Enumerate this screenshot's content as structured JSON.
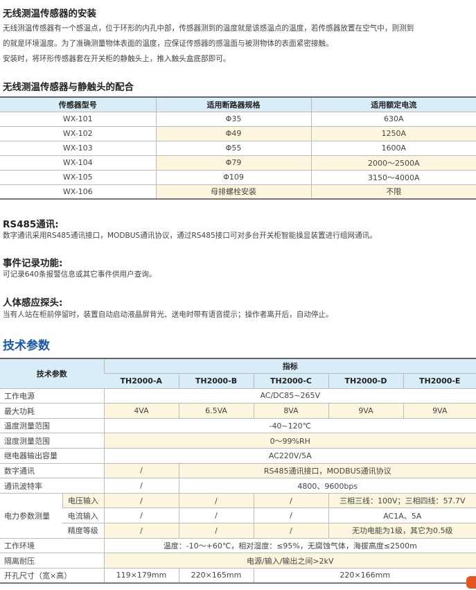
{
  "s1": {
    "title": "无线测温传感器的安装",
    "lines": [
      "无线测温传感器有一个感温点，位于环形的内孔中部，传感器测到的温度就是该感温点的温度，若传感器放置在空气中，则测到",
      "的就是环境温度。为了准确测量物体表面的温度，应保证传感器的感温面与被测物体的表面紧密接触。",
      "安装时，将环形传感器套在开关柜的静触头上，推入触头盒底部即可。"
    ]
  },
  "s2": {
    "title": "无线测温传感器与静触头的配合",
    "headers": [
      "传感器型号",
      "适用断路器规格",
      "适用额定电流"
    ],
    "rows": [
      [
        "WX-101",
        "Φ35",
        "630A"
      ],
      [
        "WX-102",
        "Φ49",
        "1250A"
      ],
      [
        "WX-103",
        "Φ55",
        "1600A"
      ],
      [
        "WX-104",
        "Φ79",
        "2000～2500A"
      ],
      [
        "WX-105",
        "Φ109",
        "3150～4000A"
      ],
      [
        "WX-106",
        "母排螺栓安装",
        "不限"
      ]
    ]
  },
  "rs485": {
    "title": "RS485通讯:",
    "text": "数字通讯采用RS485通讯接口，MODBUS通讯协议，通过RS485接口可对多台开关柜智能操显装置进行组网通讯。"
  },
  "event": {
    "title": "事件记录功能:",
    "text": "可记录640条报警信息或其它事件供用户查询。"
  },
  "sensor": {
    "title": "人体感应探头:",
    "text": "当有人站在柜前停留时，装置自动启动液晶屏背光、送电时带有语音提示；操作者离开后，自动停止。"
  },
  "spec": {
    "title": "技术参数",
    "h_param": "技术参数",
    "h_index": "指标",
    "models": [
      "TH2000-A",
      "TH2000-B",
      "TH2000-C",
      "TH2000-D",
      "TH2000-E"
    ],
    "power": [
      "工作电源",
      "AC/DC85~265V"
    ],
    "consume": [
      "最大功耗",
      "4VA",
      "6.5VA",
      "8VA",
      "9VA",
      "9VA"
    ],
    "temp": [
      "温度测量范围",
      "-40~120℃"
    ],
    "humid": [
      "湿度测量范围",
      "0～99%RH"
    ],
    "relay": [
      "继电器输出容量",
      "AC220V/5A"
    ],
    "digital": [
      "数字通讯",
      "/",
      "RS485通讯接口，MODBUS通讯协议"
    ],
    "baud": [
      "通讯波特率",
      "/",
      "4800、9600bps"
    ],
    "meas": "电力参数测量",
    "volt": [
      "电压输入",
      "/",
      "/",
      "/",
      "三相三线：100V；三相四线：57.7V"
    ],
    "curr": [
      "电流输入",
      "/",
      "/",
      "/",
      "AC1A、5A"
    ],
    "acc": [
      "精度等级",
      "/",
      "/",
      "/",
      "无功电能为1级，其它为0.5级"
    ],
    "env": [
      "工作环境",
      "温度：-10～+60℃，相对湿度：≤95%，无腐蚀气体，海拔高度≤2500m"
    ],
    "iso": [
      "隔离耐压",
      "电源/输入/输出之间>2kV"
    ],
    "hole": [
      "开孔尺寸（宽×高）",
      "119×179mm",
      "220×165mm",
      "220×166mm"
    ]
  },
  "colors": {
    "header": "#d8edf8",
    "highlight": "#fdf6df",
    "title_blue": "#1a57a8",
    "logo": "#e8541f"
  }
}
